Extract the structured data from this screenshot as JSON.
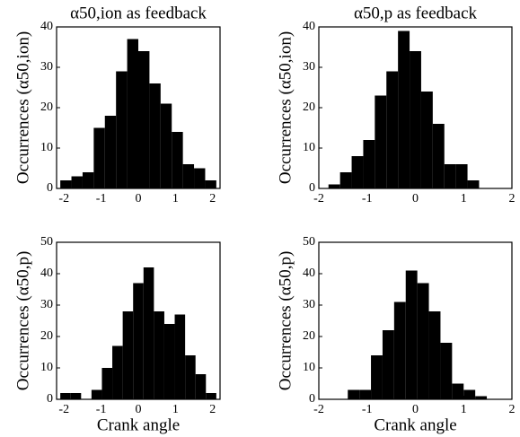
{
  "chart_data": [
    {
      "type": "histogram",
      "title": "α50,ion as feedback",
      "ylabel": "Occurrences (α50,ion)",
      "bins": [
        -2.1,
        -1.8,
        -1.5,
        -1.2,
        -0.9,
        -0.6,
        -0.3,
        0,
        0.3,
        0.6,
        0.9,
        1.2,
        1.5,
        1.8,
        2.1
      ],
      "counts": [
        2,
        3,
        4,
        15,
        18,
        29,
        37,
        34,
        26,
        21,
        14,
        6,
        5,
        2
      ],
      "color": "#000000",
      "xlim": [
        -2.2,
        2.2
      ],
      "ylim": [
        0,
        40
      ],
      "xticks": [
        -2,
        -1,
        0,
        1,
        2
      ],
      "yticks": [
        0,
        10,
        20,
        30,
        40
      ]
    },
    {
      "type": "histogram",
      "title": "α50,p as feedback",
      "ylabel": "Occurrences (α50,ion)",
      "bins": [
        -1.8,
        -1.56,
        -1.32,
        -1.08,
        -0.84,
        -0.6,
        -0.36,
        -0.12,
        0.12,
        0.36,
        0.6,
        0.84,
        1.08,
        1.32
      ],
      "counts": [
        1,
        4,
        8,
        12,
        23,
        29,
        39,
        34,
        24,
        16,
        6,
        6,
        2
      ],
      "color": "#000000",
      "xlim": [
        -2,
        2
      ],
      "ylim": [
        0,
        40
      ],
      "xticks": [
        -2,
        -1,
        0,
        1,
        2
      ],
      "yticks": [
        0,
        10,
        20,
        30,
        40
      ]
    },
    {
      "type": "histogram",
      "ylabel": "Occurrences (α50,p)",
      "xlabel": "Crank angle",
      "bins": [
        -2.1,
        -1.82,
        -1.54,
        -1.26,
        -0.98,
        -0.7,
        -0.42,
        -0.14,
        0.14,
        0.42,
        0.7,
        0.98,
        1.26,
        1.54,
        1.82,
        2.1
      ],
      "counts": [
        2,
        2,
        0,
        3,
        10,
        17,
        28,
        37,
        42,
        28,
        24,
        27,
        14,
        8,
        2
      ],
      "color": "#000000",
      "xlim": [
        -2.2,
        2.2
      ],
      "ylim": [
        0,
        50
      ],
      "xticks": [
        -2,
        -1,
        0,
        1,
        2
      ],
      "yticks": [
        0,
        10,
        20,
        30,
        40,
        50
      ]
    },
    {
      "type": "histogram",
      "ylabel": "Occurrences (α50,p)",
      "xlabel": "Crank angle",
      "bins": [
        -1.4,
        -1.16,
        -0.92,
        -0.68,
        -0.44,
        -0.2,
        0.04,
        0.28,
        0.52,
        0.76,
        1.0,
        1.24,
        1.48
      ],
      "counts": [
        3,
        3,
        14,
        22,
        31,
        41,
        37,
        28,
        18,
        5,
        3,
        1
      ],
      "color": "#000000",
      "xlim": [
        -2,
        2
      ],
      "ylim": [
        0,
        50
      ],
      "xticks": [
        -2,
        -1,
        0,
        1,
        2
      ],
      "yticks": [
        0,
        10,
        20,
        30,
        40,
        50
      ]
    }
  ]
}
